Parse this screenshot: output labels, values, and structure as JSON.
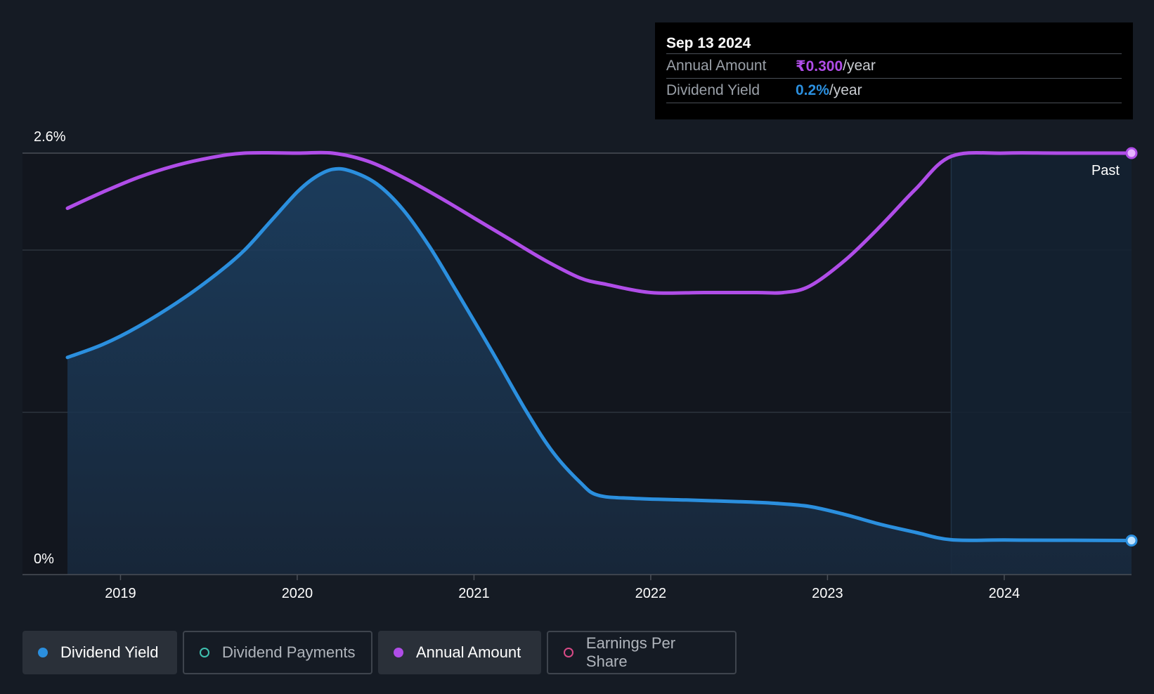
{
  "tooltip": {
    "date": "Sep 13 2024",
    "annual_amount_label": "Annual Amount",
    "annual_amount_value": "₹0.300",
    "annual_amount_unit": "/year",
    "dividend_yield_label": "Dividend Yield",
    "dividend_yield_value": "0.2%",
    "dividend_yield_unit": "/year"
  },
  "legend": {
    "dividend_yield": "Dividend Yield",
    "dividend_payments": "Dividend Payments",
    "annual_amount": "Annual Amount",
    "earnings_per_share": "Earnings Per Share"
  },
  "colors": {
    "dividend_yield": "#2b8fde",
    "annual_amount": "#b04de8",
    "dividend_payments": "#3fc1b0",
    "earnings_per_share": "#d84a86",
    "background": "#151b24"
  },
  "chart_data": {
    "type": "line",
    "title": "",
    "ylabel": "",
    "xlabel": "",
    "y_axis_labels": [
      "2.6%",
      "0%"
    ],
    "ylim": [
      0,
      2.6
    ],
    "xlim": [
      2018.7,
      2024.72
    ],
    "xticks": [
      2019,
      2020,
      2021,
      2022,
      2023,
      2024
    ],
    "xtick_labels": [
      "2019",
      "2020",
      "2021",
      "2022",
      "2023",
      "2024"
    ],
    "past_label": "Past",
    "past_region_start": 2023.7,
    "series": [
      {
        "name": "Dividend Yield",
        "unit": "%",
        "x": [
          2018.7,
          2018.9,
          2019.1,
          2019.35,
          2019.55,
          2019.7,
          2019.85,
          2020.0,
          2020.1,
          2020.2,
          2020.3,
          2020.45,
          2020.6,
          2020.75,
          2020.9,
          2021.1,
          2021.3,
          2021.45,
          2021.6,
          2021.7,
          2021.9,
          2022.2,
          2022.5,
          2022.7,
          2022.9,
          2023.1,
          2023.3,
          2023.5,
          2023.7,
          2024.0,
          2024.3,
          2024.72
        ],
        "values": [
          1.34,
          1.42,
          1.53,
          1.7,
          1.86,
          2.0,
          2.18,
          2.36,
          2.45,
          2.5,
          2.49,
          2.41,
          2.25,
          2.02,
          1.75,
          1.38,
          1.0,
          0.75,
          0.57,
          0.49,
          0.47,
          0.46,
          0.45,
          0.44,
          0.42,
          0.37,
          0.31,
          0.26,
          0.215,
          0.213,
          0.212,
          0.21
        ]
      },
      {
        "name": "Annual Amount",
        "unit": "normalized",
        "x": [
          2018.7,
          2018.9,
          2019.1,
          2019.3,
          2019.5,
          2019.7,
          2020.0,
          2020.2,
          2020.4,
          2020.6,
          2020.8,
          2021.0,
          2021.2,
          2021.4,
          2021.6,
          2021.75,
          2022.0,
          2022.3,
          2022.6,
          2022.75,
          2022.9,
          2023.1,
          2023.3,
          2023.5,
          2023.7,
          2024.0,
          2024.3,
          2024.72
        ],
        "values": [
          2.26,
          2.36,
          2.45,
          2.52,
          2.57,
          2.6,
          2.6,
          2.6,
          2.55,
          2.45,
          2.33,
          2.2,
          2.07,
          1.94,
          1.83,
          1.79,
          1.74,
          1.74,
          1.74,
          1.74,
          1.78,
          1.94,
          2.15,
          2.38,
          2.58,
          2.6,
          2.6,
          2.6
        ]
      }
    ],
    "end_markers": [
      "Dividend Yield",
      "Annual Amount"
    ]
  }
}
